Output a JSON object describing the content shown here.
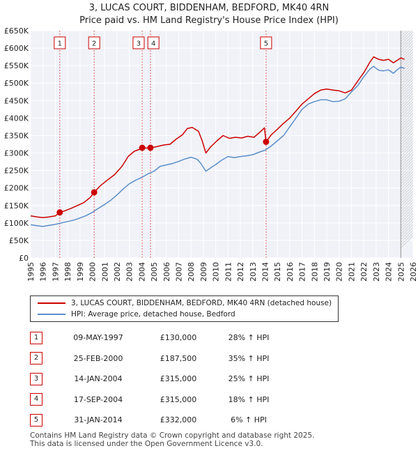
{
  "title_line1": "3, LUCAS COURT, BIDDENHAM, BEDFORD, MK40 4RN",
  "title_line2": "Price paid vs. HM Land Registry's House Price Index (HPI)",
  "chart_data": {
    "type": "line",
    "xlim": [
      1995,
      2026
    ],
    "ylim": [
      0,
      650000
    ],
    "x_ticks": [
      "1995",
      "1996",
      "1997",
      "1998",
      "1999",
      "2000",
      "2001",
      "2002",
      "2003",
      "2004",
      "2005",
      "2006",
      "2007",
      "2008",
      "2009",
      "2010",
      "2011",
      "2012",
      "2013",
      "2014",
      "2015",
      "2016",
      "2017",
      "2018",
      "2019",
      "2020",
      "2021",
      "2022",
      "2023",
      "2024",
      "2025",
      "2026"
    ],
    "y_ticks": [
      {
        "value": 0,
        "label": "£0"
      },
      {
        "value": 50000,
        "label": "£50K"
      },
      {
        "value": 100000,
        "label": "£100K"
      },
      {
        "value": 150000,
        "label": "£150K"
      },
      {
        "value": 200000,
        "label": "£200K"
      },
      {
        "value": 250000,
        "label": "£250K"
      },
      {
        "value": 300000,
        "label": "£300K"
      },
      {
        "value": 350000,
        "label": "£350K"
      },
      {
        "value": 400000,
        "label": "£400K"
      },
      {
        "value": 450000,
        "label": "£450K"
      },
      {
        "value": 500000,
        "label": "£500K"
      },
      {
        "value": 550000,
        "label": "£550K"
      },
      {
        "value": 600000,
        "label": "£600K"
      },
      {
        "value": 650000,
        "label": "£650K"
      }
    ],
    "grid": true,
    "projection_start": 2025.0,
    "series": [
      {
        "name": "3, LUCAS COURT, BIDDENHAM, BEDFORD, MK40 4RN (detached house)",
        "color": "#cc0000",
        "points": [
          [
            1995.0,
            120000
          ],
          [
            1995.5,
            117000
          ],
          [
            1996.0,
            115000
          ],
          [
            1996.5,
            117000
          ],
          [
            1997.0,
            120000
          ],
          [
            1997.36,
            130000
          ],
          [
            1997.8,
            135000
          ],
          [
            1998.3,
            142000
          ],
          [
            1998.8,
            150000
          ],
          [
            1999.3,
            158000
          ],
          [
            1999.8,
            172000
          ],
          [
            2000.15,
            187500
          ],
          [
            2000.6,
            205000
          ],
          [
            2001.2,
            222000
          ],
          [
            2001.8,
            238000
          ],
          [
            2002.4,
            262000
          ],
          [
            2002.9,
            290000
          ],
          [
            2003.4,
            305000
          ],
          [
            2003.8,
            310000
          ],
          [
            2004.04,
            315000
          ],
          [
            2004.4,
            314000
          ],
          [
            2004.71,
            315000
          ],
          [
            2005.2,
            318000
          ],
          [
            2005.8,
            323000
          ],
          [
            2006.3,
            325000
          ],
          [
            2006.8,
            340000
          ],
          [
            2007.3,
            352000
          ],
          [
            2007.7,
            370000
          ],
          [
            2008.1,
            373000
          ],
          [
            2008.6,
            362000
          ],
          [
            2008.9,
            335000
          ],
          [
            2009.2,
            300000
          ],
          [
            2009.6,
            318000
          ],
          [
            2010.1,
            335000
          ],
          [
            2010.6,
            350000
          ],
          [
            2011.1,
            342000
          ],
          [
            2011.6,
            345000
          ],
          [
            2012.1,
            343000
          ],
          [
            2012.6,
            348000
          ],
          [
            2013.1,
            345000
          ],
          [
            2013.6,
            360000
          ],
          [
            2013.95,
            372000
          ],
          [
            2014.08,
            332000
          ],
          [
            2014.5,
            352000
          ],
          [
            2015.0,
            368000
          ],
          [
            2015.5,
            385000
          ],
          [
            2016.0,
            400000
          ],
          [
            2016.5,
            420000
          ],
          [
            2017.0,
            440000
          ],
          [
            2017.5,
            455000
          ],
          [
            2018.0,
            470000
          ],
          [
            2018.5,
            480000
          ],
          [
            2019.0,
            483000
          ],
          [
            2019.5,
            480000
          ],
          [
            2020.0,
            478000
          ],
          [
            2020.5,
            472000
          ],
          [
            2021.0,
            480000
          ],
          [
            2021.5,
            505000
          ],
          [
            2022.0,
            530000
          ],
          [
            2022.5,
            560000
          ],
          [
            2022.8,
            575000
          ],
          [
            2023.2,
            568000
          ],
          [
            2023.6,
            565000
          ],
          [
            2024.0,
            568000
          ],
          [
            2024.4,
            558000
          ],
          [
            2024.7,
            565000
          ],
          [
            2025.0,
            572000
          ],
          [
            2025.3,
            568000
          ]
        ]
      },
      {
        "name": "HPI: Average price, detached house, Bedford",
        "color": "#5b8ec9",
        "points": [
          [
            1995.0,
            95000
          ],
          [
            1995.5,
            92000
          ],
          [
            1996.0,
            90000
          ],
          [
            1996.5,
            93000
          ],
          [
            1997.0,
            96000
          ],
          [
            1997.5,
            100000
          ],
          [
            1998.0,
            104000
          ],
          [
            1998.5,
            108000
          ],
          [
            1999.0,
            114000
          ],
          [
            1999.5,
            121000
          ],
          [
            2000.0,
            130000
          ],
          [
            2000.5,
            142000
          ],
          [
            2001.0,
            153000
          ],
          [
            2001.5,
            165000
          ],
          [
            2002.0,
            180000
          ],
          [
            2002.5,
            197000
          ],
          [
            2003.0,
            212000
          ],
          [
            2003.5,
            222000
          ],
          [
            2004.0,
            230000
          ],
          [
            2004.5,
            240000
          ],
          [
            2005.0,
            248000
          ],
          [
            2005.5,
            262000
          ],
          [
            2006.0,
            266000
          ],
          [
            2006.5,
            270000
          ],
          [
            2007.0,
            276000
          ],
          [
            2007.5,
            283000
          ],
          [
            2008.0,
            288000
          ],
          [
            2008.5,
            282000
          ],
          [
            2008.8,
            270000
          ],
          [
            2009.2,
            248000
          ],
          [
            2009.6,
            258000
          ],
          [
            2010.0,
            267000
          ],
          [
            2010.5,
            280000
          ],
          [
            2011.0,
            290000
          ],
          [
            2011.5,
            287000
          ],
          [
            2012.0,
            290000
          ],
          [
            2012.5,
            292000
          ],
          [
            2013.0,
            295000
          ],
          [
            2013.5,
            302000
          ],
          [
            2014.0,
            308000
          ],
          [
            2014.5,
            320000
          ],
          [
            2015.0,
            335000
          ],
          [
            2015.5,
            350000
          ],
          [
            2016.0,
            375000
          ],
          [
            2016.5,
            400000
          ],
          [
            2017.0,
            425000
          ],
          [
            2017.5,
            440000
          ],
          [
            2018.0,
            447000
          ],
          [
            2018.5,
            452000
          ],
          [
            2019.0,
            452000
          ],
          [
            2019.5,
            447000
          ],
          [
            2020.0,
            448000
          ],
          [
            2020.5,
            455000
          ],
          [
            2021.0,
            475000
          ],
          [
            2021.5,
            492000
          ],
          [
            2022.0,
            518000
          ],
          [
            2022.5,
            540000
          ],
          [
            2022.8,
            548000
          ],
          [
            2023.2,
            537000
          ],
          [
            2023.6,
            535000
          ],
          [
            2024.0,
            538000
          ],
          [
            2024.4,
            528000
          ],
          [
            2024.7,
            538000
          ],
          [
            2025.0,
            546000
          ],
          [
            2025.3,
            542000
          ]
        ]
      }
    ],
    "sales": [
      {
        "index": "1",
        "date": "09-MAY-1997",
        "x": 1997.36,
        "price": 130000,
        "price_label": "£130,000",
        "hpi_diff": "28% ↑ HPI"
      },
      {
        "index": "2",
        "date": "25-FEB-2000",
        "x": 2000.15,
        "price": 187500,
        "price_label": "£187,500",
        "hpi_diff": "35% ↑ HPI"
      },
      {
        "index": "3",
        "date": "14-JAN-2004",
        "x": 2004.04,
        "price": 315000,
        "price_label": "£315,000",
        "hpi_diff": "25% ↑ HPI"
      },
      {
        "index": "4",
        "date": "17-SEP-2004",
        "x": 2004.71,
        "price": 315000,
        "price_label": "£315,000",
        "hpi_diff": "18% ↑ HPI"
      },
      {
        "index": "5",
        "date": "31-JAN-2014",
        "x": 2014.08,
        "price": 332000,
        "price_label": "£332,000",
        "hpi_diff": "6% ↑ HPI"
      }
    ]
  },
  "legend": {
    "property_label": "3, LUCAS COURT, BIDDENHAM, BEDFORD, MK40 4RN (detached house)",
    "hpi_label": "HPI: Average price, detached house, Bedford",
    "property_color": "#cc0000",
    "hpi_color": "#5b8ec9"
  },
  "footer": {
    "line1": "Contains HM Land Registry data © Crown copyright and database right 2025.",
    "line2": "This data is licensed under the Open Government Licence v3.0."
  }
}
